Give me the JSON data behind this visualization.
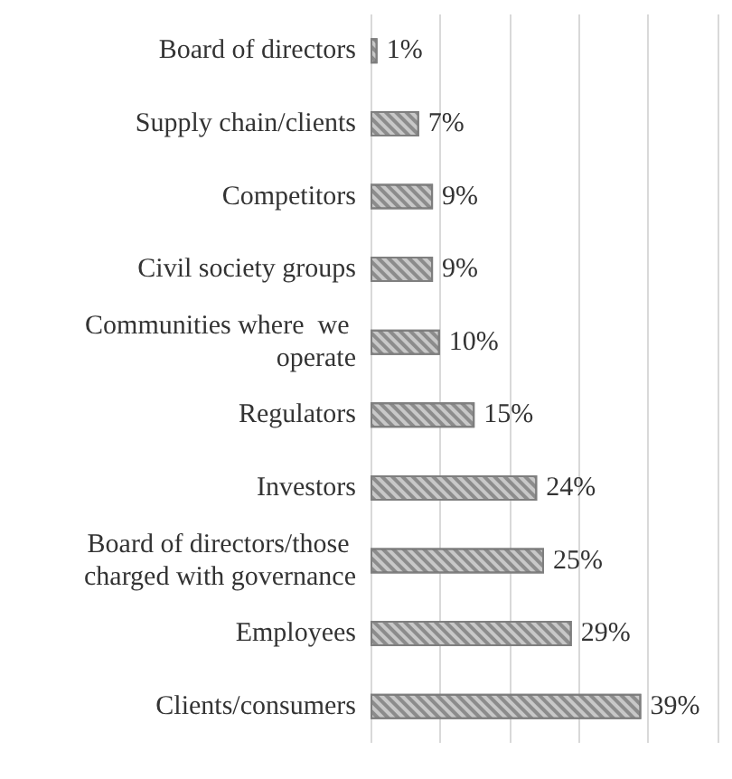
{
  "chart_data": {
    "type": "bar",
    "orientation": "horizontal",
    "categories": [
      "Board of directors",
      "Supply chain/clients",
      "Competitors",
      "Civil society groups",
      "Communities where  we operate",
      "Regulators",
      "Investors",
      "Board of directors/those charged with governance",
      "Employees",
      "Clients/consumers"
    ],
    "values": [
      1,
      7,
      9,
      9,
      10,
      15,
      24,
      25,
      29,
      39
    ],
    "value_labels": [
      "1%",
      "7%",
      "9%",
      "9%",
      "10%",
      "15%",
      "24%",
      "25%",
      "29%",
      "39%"
    ],
    "color": "#c8c8c8",
    "xlim": [
      0,
      50
    ],
    "grid": "x"
  }
}
